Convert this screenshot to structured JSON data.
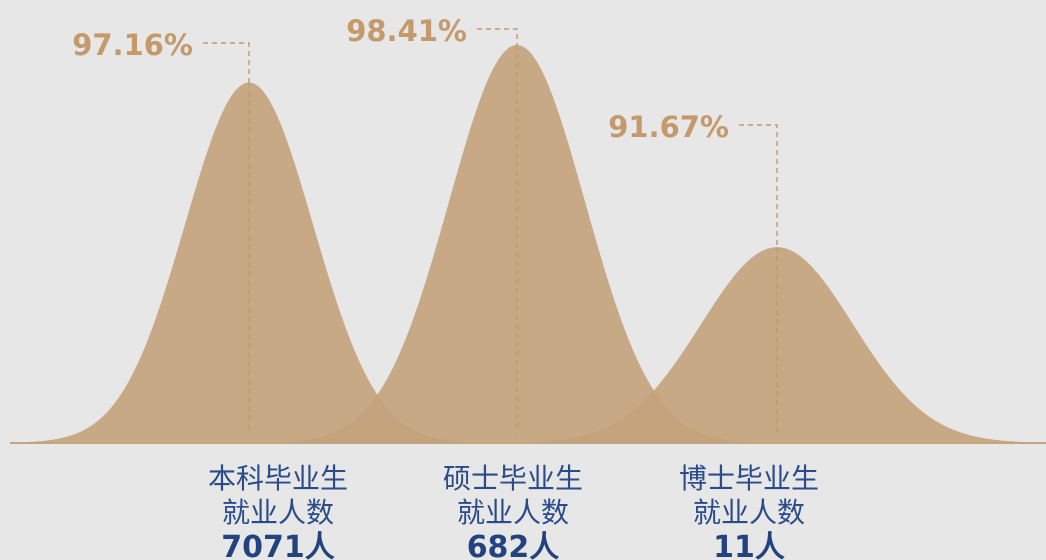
{
  "chart_data": {
    "type": "area",
    "title": "",
    "xlabel": "",
    "ylabel": "",
    "ylim": [
      0,
      100
    ],
    "categories": [
      {
        "line1": "本科毕业生",
        "line2": "就业人数",
        "count_label": "7071人",
        "count": 7071,
        "value": 97.16,
        "value_label": "97.16%"
      },
      {
        "line1": "硕士毕业生",
        "line2": "就业人数",
        "count_label": "682人",
        "count": 682,
        "value": 98.41,
        "value_label": "98.41%"
      },
      {
        "line1": "博士毕业生",
        "line2": "就业人数",
        "count_label": "11人",
        "count": 11,
        "value": 91.67,
        "value_label": "91.67%"
      }
    ],
    "grid": false,
    "legend": "none"
  },
  "colors": {
    "background": "#e7e7e7",
    "peak_fill": "#c4a47d",
    "overlap_fill": "#b8926a",
    "baseline": "#c4a47d",
    "label": "#c49a6c",
    "category_text": "#2b4c8a"
  }
}
